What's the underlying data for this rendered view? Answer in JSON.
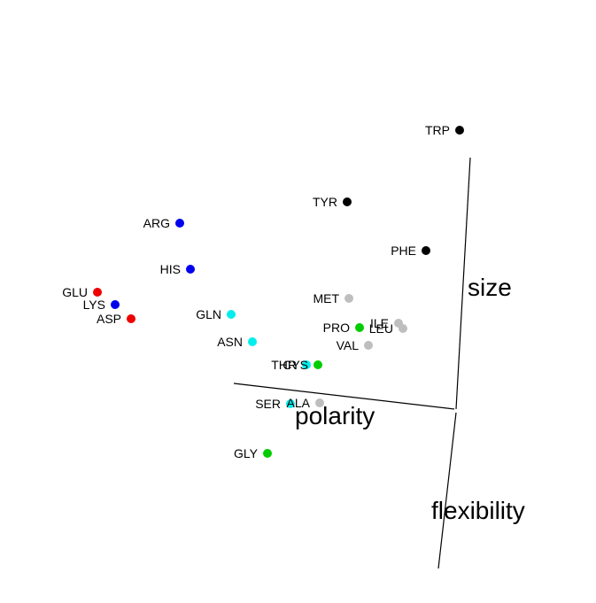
{
  "chart_data": {
    "type": "scatter",
    "title": "",
    "axes": [
      {
        "name": "size"
      },
      {
        "name": "polarity"
      },
      {
        "name": "flexibility"
      }
    ],
    "colors": {
      "aromatic": "#000000",
      "basic": "#0000ee",
      "acidic": "#ee0000",
      "polar": "#00eeee",
      "hydrophobic": "#bebebe",
      "special": "#00cc00"
    },
    "points": [
      {
        "label": "TRP",
        "group": "aromatic"
      },
      {
        "label": "TYR",
        "group": "aromatic"
      },
      {
        "label": "PHE",
        "group": "aromatic"
      },
      {
        "label": "ARG",
        "group": "basic"
      },
      {
        "label": "HIS",
        "group": "basic"
      },
      {
        "label": "GLU",
        "group": "acidic"
      },
      {
        "label": "LYS",
        "group": "basic"
      },
      {
        "label": "ASP",
        "group": "acidic"
      },
      {
        "label": "GLN",
        "group": "polar"
      },
      {
        "label": "MET",
        "group": "hydrophobic"
      },
      {
        "label": "ILE",
        "group": "hydrophobic"
      },
      {
        "label": "PRO",
        "group": "special"
      },
      {
        "label": "LEU",
        "group": "hydrophobic"
      },
      {
        "label": "VAL",
        "group": "hydrophobic"
      },
      {
        "label": "ASN",
        "group": "polar"
      },
      {
        "label": "THR",
        "group": "polar"
      },
      {
        "label": "CYS",
        "group": "special"
      },
      {
        "label": "SER",
        "group": "polar"
      },
      {
        "label": "ALA",
        "group": "hydrophobic"
      },
      {
        "label": "GLY",
        "group": "special"
      }
    ]
  }
}
